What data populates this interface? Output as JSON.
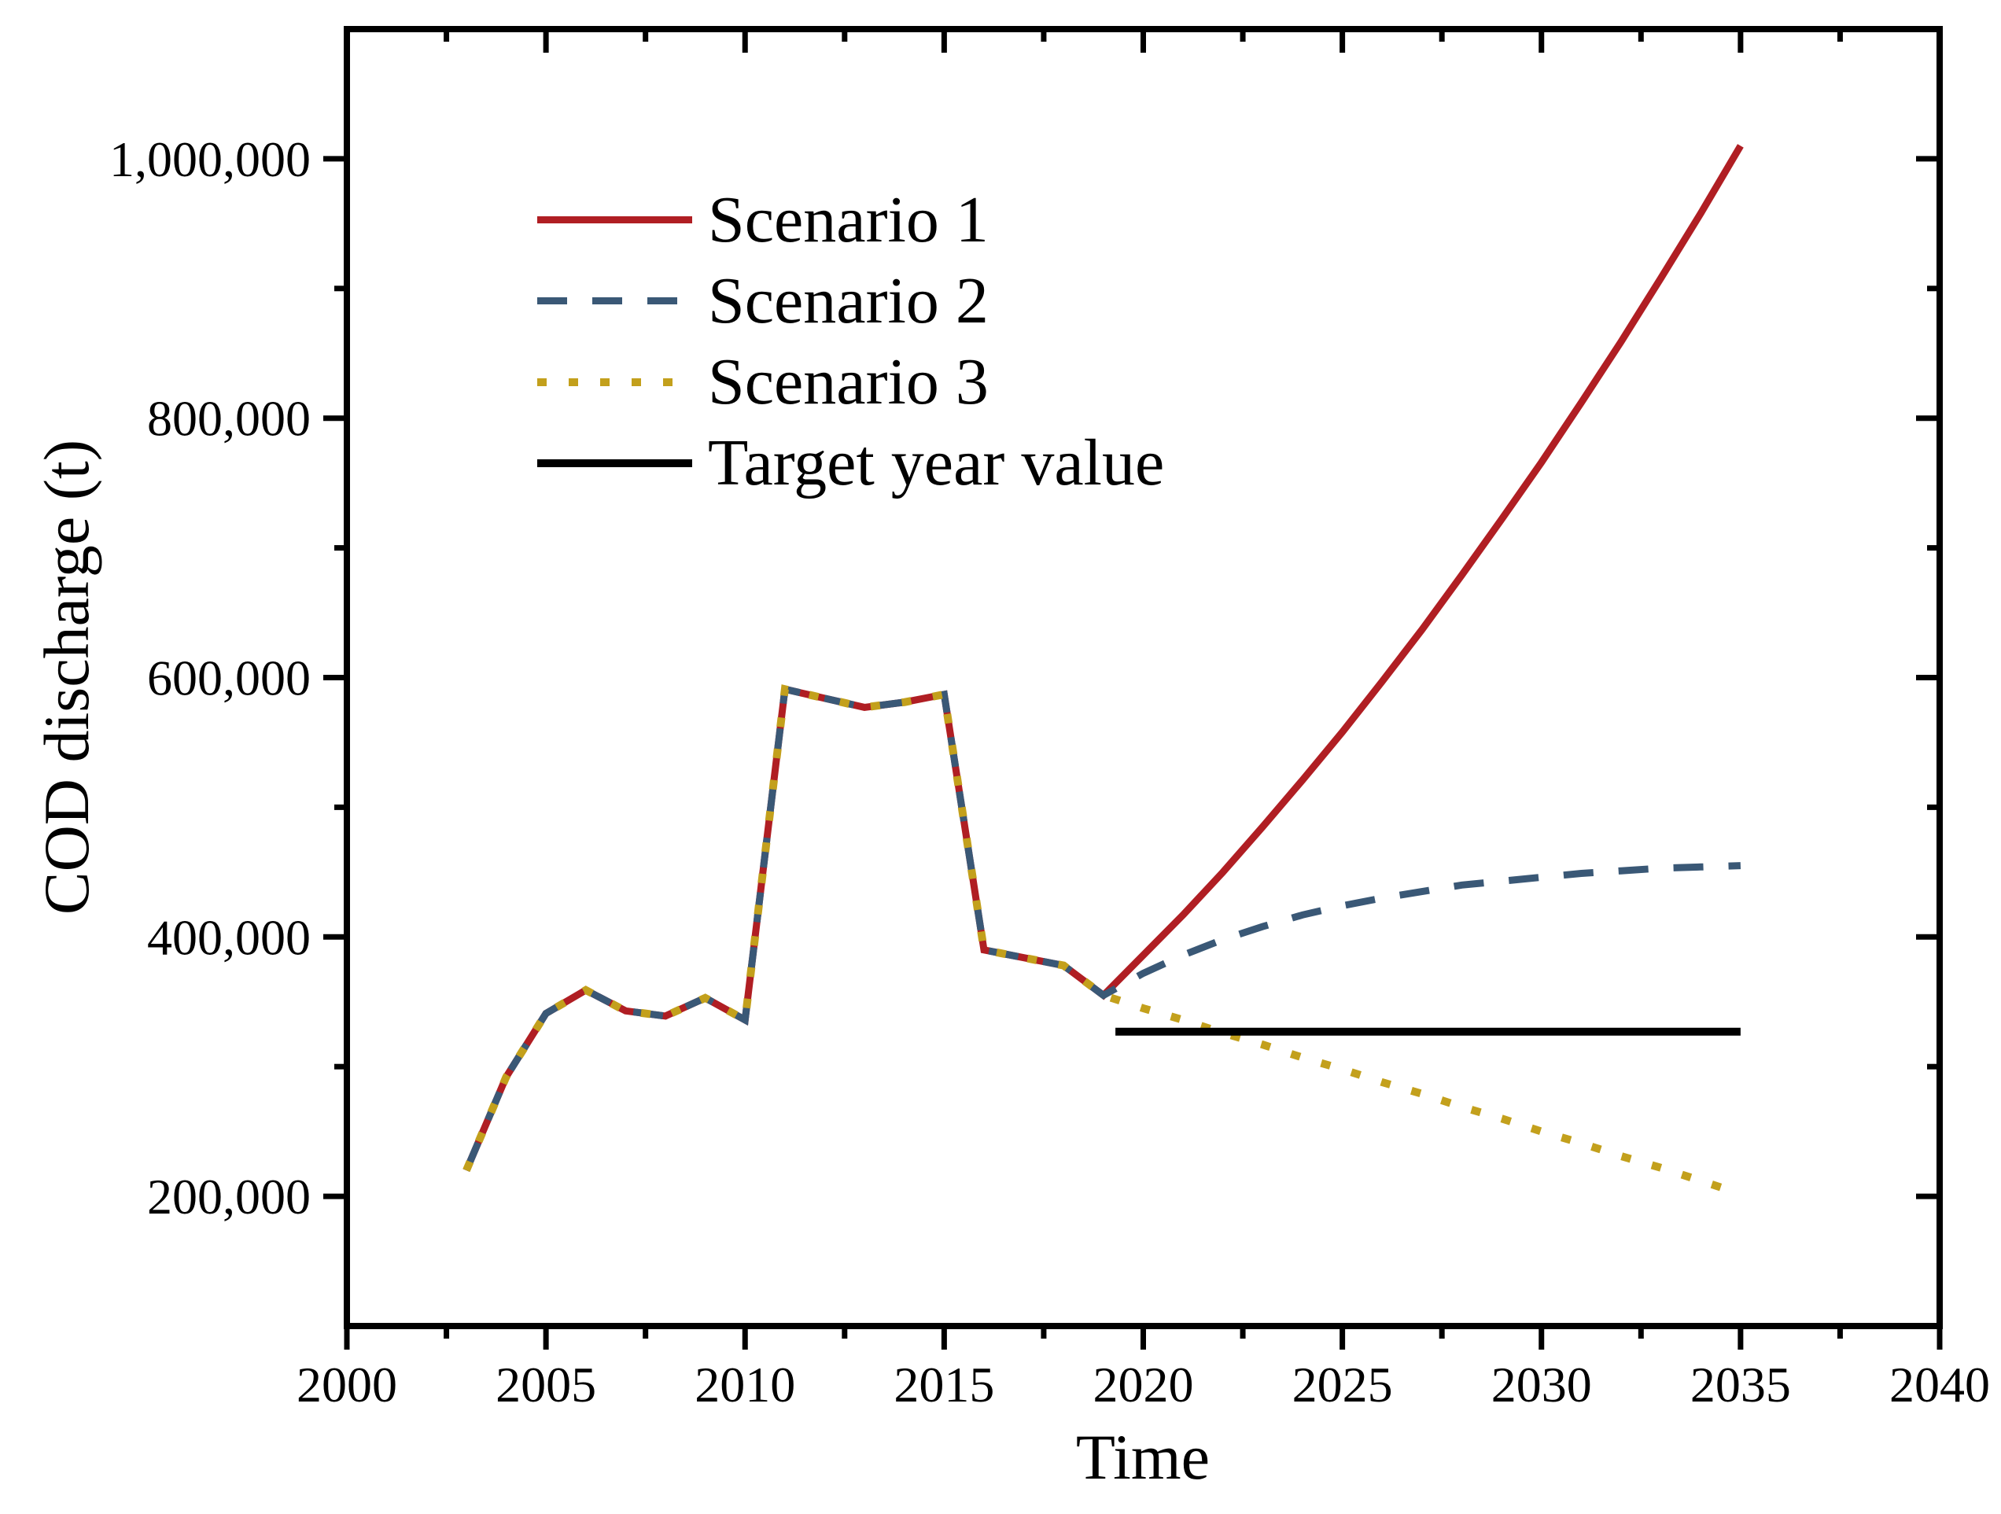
{
  "figure": {
    "background": "#ffffff",
    "text_color": "#000000",
    "axis_color": "#000000"
  },
  "axes": {
    "x_title": "Time",
    "y_title": "COD discharge (t)"
  },
  "legend": {
    "position": "upper left inside plot",
    "entries": [
      {
        "label": "Scenario 1"
      },
      {
        "label": "Scenario 2"
      },
      {
        "label": "Scenario 3"
      },
      {
        "label": "Target year value"
      }
    ]
  },
  "chart_data": {
    "type": "line",
    "title": "",
    "xlabel": "Time",
    "ylabel": "COD discharge (t)",
    "xlim": [
      2000,
      2040
    ],
    "ylim": [
      100000,
      1100000
    ],
    "grid": false,
    "legend_position": "upper-left",
    "x_ticks": {
      "major": [
        2000,
        2005,
        2010,
        2015,
        2020,
        2025,
        2030,
        2035,
        2040
      ],
      "labels": [
        "2000",
        "2005",
        "2010",
        "2015",
        "2020",
        "2025",
        "2030",
        "2035",
        "2040"
      ],
      "minor": [
        2002.5,
        2007.5,
        2012.5,
        2017.5,
        2022.5,
        2027.5,
        2032.5,
        2037.5
      ]
    },
    "y_ticks": {
      "major": [
        200000,
        400000,
        600000,
        800000,
        1000000
      ],
      "labels": [
        "200,000",
        "400,000",
        "600,000",
        "800,000",
        "1,000,000"
      ],
      "minor": [
        300000,
        500000,
        700000,
        900000
      ]
    },
    "series": [
      {
        "name": "Scenario 1",
        "color": "#b01e23",
        "line_style": "solid",
        "line_width": 9,
        "x": [
          2003,
          2004,
          2005,
          2006,
          2007,
          2008,
          2009,
          2010,
          2011,
          2012,
          2013,
          2014,
          2015,
          2016,
          2017,
          2018,
          2019,
          2020,
          2021,
          2022,
          2023,
          2024,
          2025,
          2026,
          2027,
          2028,
          2029,
          2030,
          2031,
          2032,
          2033,
          2034,
          2035
        ],
        "y": [
          220000,
          292000,
          341000,
          359000,
          343000,
          339000,
          353000,
          336000,
          591000,
          584000,
          577000,
          581000,
          587000,
          390000,
          384000,
          378000,
          355000,
          386000,
          417000,
          450000,
          485000,
          521000,
          558000,
          597000,
          637000,
          679000,
          722000,
          766000,
          812000,
          859000,
          908000,
          958000,
          1010000
        ]
      },
      {
        "name": "Scenario 2",
        "color": "#3a5876",
        "line_style": "dashed",
        "line_width": 9,
        "x": [
          2003,
          2004,
          2005,
          2006,
          2007,
          2008,
          2009,
          2010,
          2011,
          2012,
          2013,
          2014,
          2015,
          2016,
          2017,
          2018,
          2019,
          2020,
          2021,
          2022,
          2023,
          2024,
          2025,
          2026,
          2027,
          2028,
          2029,
          2030,
          2031,
          2032,
          2033,
          2034,
          2035
        ],
        "y": [
          220000,
          292000,
          341000,
          359000,
          343000,
          339000,
          353000,
          336000,
          591000,
          584000,
          577000,
          581000,
          587000,
          390000,
          384000,
          378000,
          355000,
          372000,
          386000,
          398000,
          408000,
          417000,
          424000,
          430000,
          435000,
          440000,
          443000,
          446000,
          449000,
          451000,
          453000,
          454000,
          455000
        ]
      },
      {
        "name": "Scenario 3",
        "color": "#c3a01c",
        "line_style": "dotted",
        "line_width": 10,
        "x": [
          2003,
          2004,
          2005,
          2006,
          2007,
          2008,
          2009,
          2010,
          2011,
          2012,
          2013,
          2014,
          2015,
          2016,
          2017,
          2018,
          2019,
          2020,
          2021,
          2022,
          2023,
          2024,
          2025,
          2026,
          2027,
          2028,
          2029,
          2030,
          2031,
          2032,
          2033,
          2034,
          2034.5
        ],
        "y": [
          220000,
          292000,
          341000,
          359000,
          343000,
          339000,
          353000,
          336000,
          591000,
          584000,
          577000,
          581000,
          587000,
          390000,
          384000,
          378000,
          355000,
          345000,
          336000,
          326000,
          317000,
          307000,
          298000,
          288000,
          279000,
          269000,
          260000,
          250000,
          241000,
          231000,
          222000,
          212000,
          207000
        ]
      },
      {
        "name": "Target year value",
        "color": "#000000",
        "line_style": "solid",
        "line_width": 10,
        "x": [
          2019.3,
          2035
        ],
        "y": [
          327000,
          327000
        ]
      }
    ]
  }
}
